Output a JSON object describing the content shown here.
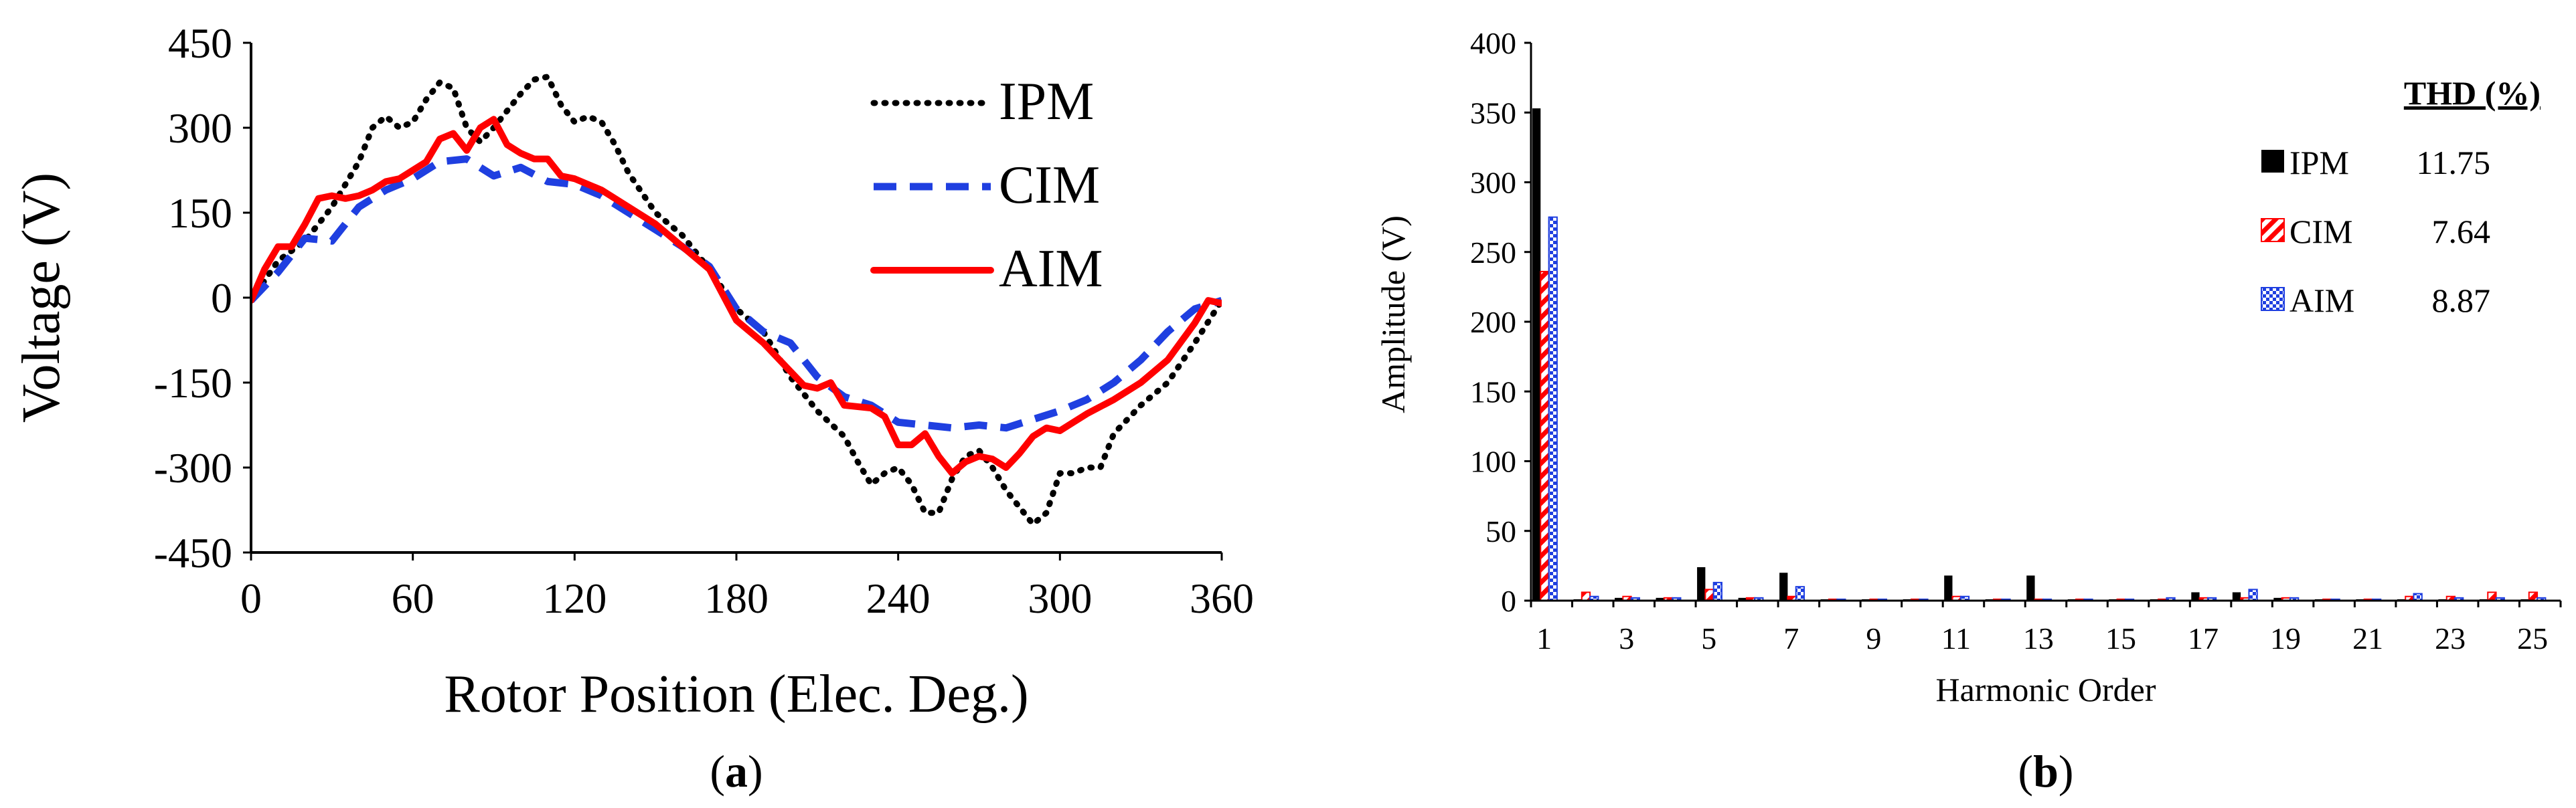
{
  "chart_data": [
    {
      "type": "line",
      "panel_label": "(a)",
      "panel_label_bold": "a",
      "xlabel": "Rotor Position (Elec. Deg.)",
      "ylabel": "Voltage (V)",
      "xlim": [
        0,
        360
      ],
      "ylim": [
        -450,
        450
      ],
      "x_ticks": [
        0,
        60,
        120,
        180,
        240,
        300,
        360
      ],
      "y_ticks": [
        450,
        300,
        150,
        0,
        -150,
        -300,
        -450
      ],
      "grid": false,
      "legend_placement": "top-right",
      "series": [
        {
          "name": "IPM",
          "color": "#000000",
          "style": "dotted",
          "x": [
            0,
            10,
            20,
            30,
            40,
            45,
            50,
            55,
            60,
            65,
            70,
            75,
            80,
            85,
            90,
            95,
            100,
            105,
            110,
            115,
            120,
            125,
            130,
            135,
            140,
            150,
            160,
            170,
            180,
            190,
            200,
            210,
            220,
            225,
            230,
            235,
            240,
            245,
            250,
            255,
            260,
            265,
            270,
            275,
            280,
            285,
            290,
            295,
            300,
            305,
            310,
            315,
            320,
            330,
            340,
            350,
            360
          ],
          "y": [
            -5,
            65,
            100,
            160,
            240,
            300,
            320,
            300,
            310,
            350,
            380,
            370,
            300,
            275,
            300,
            330,
            360,
            385,
            390,
            340,
            310,
            320,
            310,
            270,
            220,
            150,
            110,
            50,
            -20,
            -60,
            -140,
            -200,
            -245,
            -290,
            -330,
            -310,
            -300,
            -330,
            -380,
            -380,
            -320,
            -280,
            -270,
            -300,
            -340,
            -370,
            -400,
            -380,
            -310,
            -310,
            -300,
            -300,
            -240,
            -190,
            -150,
            -80,
            -5
          ]
        },
        {
          "name": "CIM",
          "color": "#1f3fe0",
          "style": "dashed",
          "x": [
            0,
            10,
            20,
            30,
            40,
            50,
            60,
            70,
            80,
            90,
            100,
            110,
            120,
            130,
            140,
            150,
            160,
            170,
            180,
            190,
            200,
            210,
            220,
            230,
            240,
            250,
            260,
            270,
            280,
            290,
            300,
            310,
            320,
            330,
            340,
            350,
            360
          ],
          "y": [
            -5,
            45,
            105,
            100,
            160,
            190,
            210,
            240,
            245,
            215,
            230,
            205,
            200,
            180,
            150,
            120,
            90,
            55,
            -20,
            -60,
            -80,
            -140,
            -175,
            -190,
            -220,
            -225,
            -230,
            -225,
            -230,
            -215,
            -200,
            -180,
            -150,
            -110,
            -60,
            -20,
            -5
          ]
        },
        {
          "name": "AIM",
          "color": "#ff0000",
          "style": "solid",
          "x": [
            0,
            5,
            10,
            15,
            20,
            25,
            30,
            35,
            40,
            45,
            50,
            55,
            60,
            65,
            70,
            75,
            80,
            85,
            90,
            95,
            100,
            105,
            110,
            115,
            120,
            130,
            140,
            150,
            160,
            170,
            180,
            190,
            200,
            205,
            210,
            215,
            220,
            230,
            235,
            240,
            245,
            250,
            255,
            260,
            265,
            270,
            275,
            280,
            285,
            290,
            295,
            300,
            310,
            320,
            330,
            340,
            350,
            355,
            360
          ],
          "y": [
            -5,
            50,
            90,
            90,
            130,
            175,
            180,
            175,
            180,
            190,
            205,
            210,
            225,
            240,
            280,
            290,
            260,
            300,
            315,
            270,
            255,
            245,
            245,
            215,
            210,
            190,
            160,
            130,
            90,
            50,
            -40,
            -80,
            -130,
            -155,
            -160,
            -150,
            -190,
            -195,
            -210,
            -260,
            -260,
            -240,
            -280,
            -310,
            -290,
            -280,
            -285,
            -300,
            -275,
            -245,
            -230,
            -235,
            -205,
            -180,
            -150,
            -110,
            -45,
            -5,
            -10
          ]
        }
      ]
    },
    {
      "type": "bar",
      "panel_label": "(b)",
      "panel_label_bold": "b",
      "xlabel": "Harmonic Order",
      "ylabel": "Amplitude (V)",
      "ylim": [
        0,
        400
      ],
      "y_ticks": [
        0,
        50,
        100,
        150,
        200,
        250,
        300,
        350,
        400
      ],
      "categories": [
        1,
        2,
        3,
        4,
        5,
        6,
        7,
        8,
        9,
        10,
        11,
        12,
        13,
        14,
        15,
        16,
        17,
        18,
        19,
        20,
        21,
        22,
        23,
        24,
        25
      ],
      "x_tick_labels": [
        "1",
        "3",
        "5",
        "7",
        "9",
        "11",
        "13",
        "15",
        "17",
        "19",
        "21",
        "23",
        "25"
      ],
      "grid": false,
      "legend_placement": "top-right",
      "legend_title": "THD (%)",
      "series": [
        {
          "name": "IPM",
          "thd": "11.75",
          "color": "#000000",
          "fill": "solid",
          "values": [
            353,
            1,
            2,
            2,
            24,
            2,
            20,
            1,
            1,
            1,
            18,
            1,
            18,
            1,
            1,
            1,
            6,
            6,
            2,
            1,
            1,
            1,
            1,
            1,
            1
          ]
        },
        {
          "name": "CIM",
          "thd": "7.64",
          "color": "#ff0000",
          "fill": "hatched",
          "values": [
            236,
            6,
            3,
            2,
            8,
            2,
            3,
            1,
            1,
            1,
            3,
            1,
            1,
            1,
            1,
            1,
            2,
            2,
            2,
            1,
            1,
            3,
            3,
            6,
            6
          ]
        },
        {
          "name": "AIM",
          "thd": "8.87",
          "color": "#1f3fe0",
          "fill": "checkered",
          "values": [
            275,
            3,
            2,
            2,
            13,
            2,
            10,
            1,
            1,
            1,
            3,
            1,
            1,
            1,
            1,
            2,
            2,
            8,
            2,
            1,
            1,
            5,
            2,
            2,
            2
          ]
        }
      ]
    }
  ]
}
